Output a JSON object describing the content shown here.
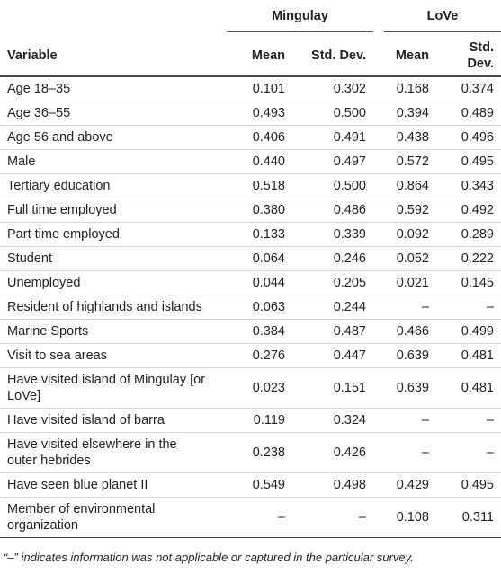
{
  "table": {
    "groups": [
      "Mingulay",
      "LoVe"
    ],
    "columns": [
      "Variable",
      "Mean",
      "Std. Dev.",
      "Mean",
      "Std. Dev."
    ],
    "rows": [
      [
        "Age 18–35",
        "0.101",
        "0.302",
        "0.168",
        "0.374"
      ],
      [
        "Age 36–55",
        "0.493",
        "0.500",
        "0.394",
        "0.489"
      ],
      [
        "Age 56 and above",
        "0.406",
        "0.491",
        "0.438",
        "0.496"
      ],
      [
        "Male",
        "0.440",
        "0.497",
        "0.572",
        "0.495"
      ],
      [
        "Tertiary education",
        "0.518",
        "0.500",
        "0.864",
        "0.343"
      ],
      [
        "Full time employed",
        "0.380",
        "0.486",
        "0.592",
        "0.492"
      ],
      [
        "Part time employed",
        "0.133",
        "0.339",
        "0.092",
        "0.289"
      ],
      [
        "Student",
        "0.064",
        "0.246",
        "0.052",
        "0.222"
      ],
      [
        "Unemployed",
        "0.044",
        "0.205",
        "0.021",
        "0.145"
      ],
      [
        "Resident of highlands and islands",
        "0.063",
        "0.244",
        "–",
        "–"
      ],
      [
        "Marine Sports",
        "0.384",
        "0.487",
        "0.466",
        "0.499"
      ],
      [
        "Visit to sea areas",
        "0.276",
        "0.447",
        "0.639",
        "0.481"
      ],
      [
        "Have visited island of Mingulay [or LoVe]",
        "0.023",
        "0.151",
        "0.639",
        "0.481"
      ],
      [
        "Have visited island of barra",
        "0.119",
        "0.324",
        "–",
        "–"
      ],
      [
        "Have visited elsewhere in the outer hebrides",
        "0.238",
        "0.426",
        "–",
        "–"
      ],
      [
        "Have seen blue planet II",
        "0.549",
        "0.498",
        "0.429",
        "0.495"
      ],
      [
        "Member of environmental organization",
        "–",
        "–",
        "0.108",
        "0.311"
      ]
    ],
    "footnote": "“–” indicates information was not applicable or captured in the particular survey."
  }
}
